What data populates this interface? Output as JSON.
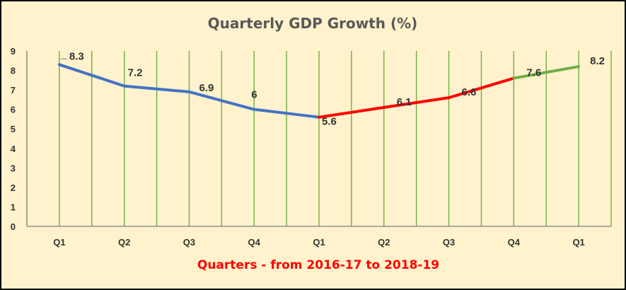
{
  "chart_data": {
    "type": "line",
    "title": "Quarterly GDP Growth (%)",
    "xlabel": "Quarters - from 2016-17 to 2018-19",
    "ylabel": "",
    "ylim": [
      0,
      9
    ],
    "yticks": [
      0,
      1,
      2,
      3,
      4,
      5,
      6,
      7,
      8,
      9
    ],
    "categories": [
      "Q1",
      "Q2",
      "Q3",
      "Q4",
      "Q1",
      "Q2",
      "Q3",
      "Q4",
      "Q1"
    ],
    "values": [
      8.3,
      7.2,
      6.9,
      6,
      5.6,
      6.1,
      6.6,
      7.6,
      8.2
    ],
    "labels": [
      "8.3",
      "7.2",
      "6.9",
      "6",
      "5.6",
      "6.1",
      "6.6",
      "7.6",
      "8.2"
    ],
    "segments": [
      {
        "from": 0,
        "to": 4,
        "color": "#4472C4"
      },
      {
        "from": 4,
        "to": 7,
        "color": "#FF0000"
      },
      {
        "from": 7,
        "to": 8,
        "color": "#70AD47"
      }
    ],
    "grid": "vertical",
    "legend": "none"
  },
  "colors": {
    "background": "#FFF2CC",
    "border": "#000000",
    "gridline": "#70AD47",
    "axis": "#7F7F7F",
    "title": "#595959",
    "xlabel": "#FF0000"
  }
}
